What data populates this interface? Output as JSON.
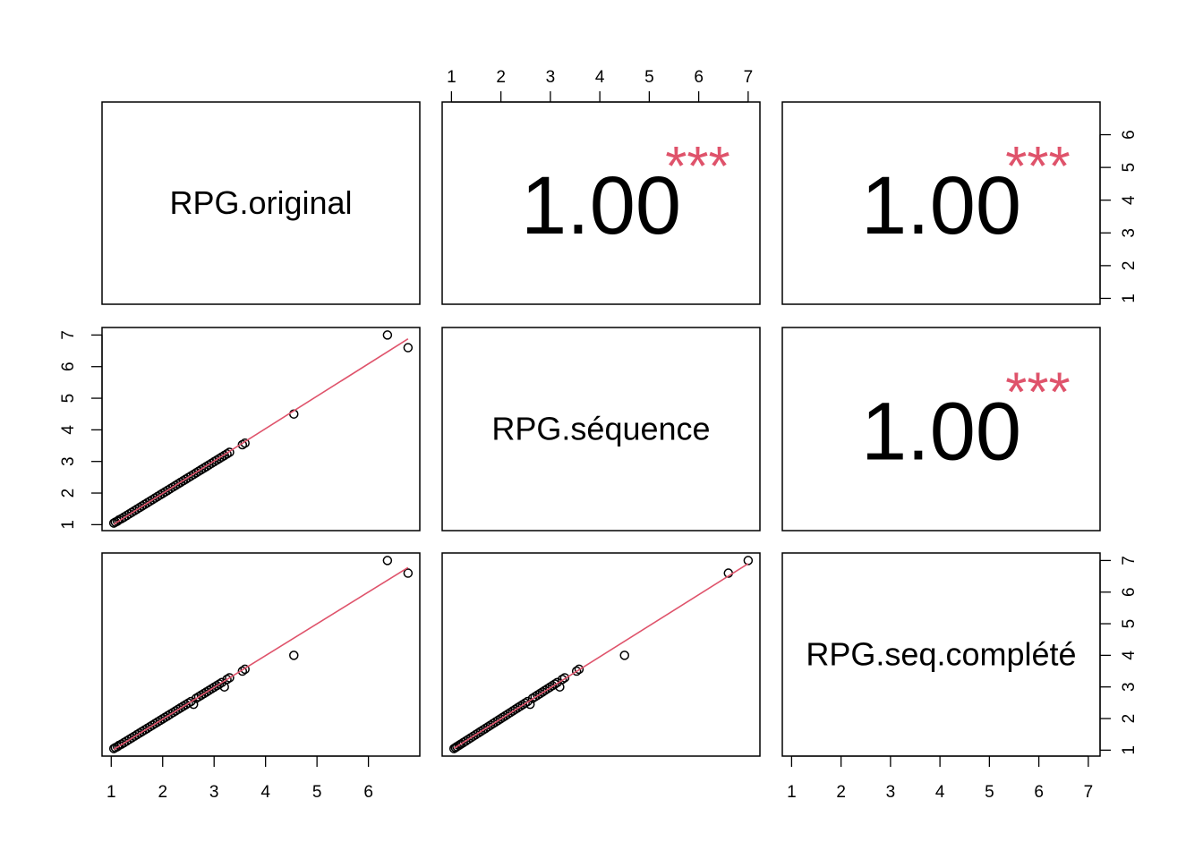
{
  "chart_data": {
    "type": "scatter-matrix",
    "variables": [
      "RPG.original",
      "RPG.séquence",
      "RPG.seq.complété"
    ],
    "observations": {
      "RPG.original": [
        1.05,
        1.08,
        1.12,
        1.15,
        1.2,
        1.25,
        1.3,
        1.35,
        1.4,
        1.45,
        1.5,
        1.55,
        1.6,
        1.65,
        1.7,
        1.75,
        1.8,
        1.85,
        1.9,
        1.95,
        2.0,
        2.05,
        2.1,
        2.15,
        2.2,
        2.25,
        2.3,
        2.35,
        2.4,
        2.45,
        2.5,
        2.55,
        2.6,
        2.65,
        2.7,
        2.75,
        2.8,
        2.85,
        2.9,
        2.95,
        3.0,
        3.05,
        3.1,
        3.15,
        3.2,
        3.25,
        3.3,
        3.55,
        3.6,
        4.55,
        6.37,
        6.77
      ],
      "RPG.séquence": [
        1.05,
        1.08,
        1.11,
        1.15,
        1.19,
        1.24,
        1.29,
        1.34,
        1.39,
        1.44,
        1.49,
        1.54,
        1.59,
        1.64,
        1.69,
        1.74,
        1.79,
        1.84,
        1.89,
        1.94,
        1.99,
        2.04,
        2.09,
        2.14,
        2.19,
        2.24,
        2.29,
        2.34,
        2.39,
        2.44,
        2.49,
        2.54,
        2.59,
        2.64,
        2.69,
        2.74,
        2.79,
        2.84,
        2.89,
        2.94,
        2.99,
        3.04,
        3.09,
        3.14,
        3.19,
        3.24,
        3.29,
        3.53,
        3.58,
        4.5,
        7.0,
        6.6
      ],
      "RPG.seq.complété": [
        1.05,
        1.08,
        1.11,
        1.15,
        1.19,
        1.24,
        1.29,
        1.34,
        1.39,
        1.44,
        1.49,
        1.54,
        1.59,
        1.64,
        1.69,
        1.74,
        1.79,
        1.84,
        1.89,
        1.94,
        1.99,
        2.04,
        2.09,
        2.14,
        2.19,
        2.24,
        2.29,
        2.34,
        2.39,
        2.44,
        2.49,
        2.54,
        2.45,
        2.64,
        2.69,
        2.74,
        2.79,
        2.84,
        2.89,
        2.94,
        2.99,
        3.04,
        3.09,
        3.14,
        3.0,
        3.24,
        3.29,
        3.5,
        3.56,
        4.0,
        7.0,
        6.6
      ]
    },
    "correlations": [
      {
        "row": 1,
        "col": 2,
        "value": "1.00",
        "stars": "***"
      },
      {
        "row": 1,
        "col": 3,
        "value": "1.00",
        "stars": "***"
      },
      {
        "row": 2,
        "col": 3,
        "value": "1.00",
        "stars": "***"
      }
    ],
    "axes": {
      "top_col2_ticks": [
        "1",
        "2",
        "3",
        "4",
        "5",
        "6",
        "7"
      ],
      "right_row1_ticks": [
        "1",
        "2",
        "3",
        "4",
        "5",
        "6"
      ],
      "left_row2_ticks": [
        "1",
        "2",
        "3",
        "4",
        "5",
        "6",
        "7"
      ],
      "right_row3_ticks": [
        "1",
        "2",
        "3",
        "4",
        "5",
        "6",
        "7"
      ],
      "bottom_col1_ticks": [
        "1",
        "2",
        "3",
        "4",
        "5",
        "6"
      ],
      "bottom_col3_ticks": [
        "1",
        "2",
        "3",
        "4",
        "5",
        "6",
        "7"
      ]
    },
    "colors": {
      "fit_line": "#DF536B",
      "stars": "#DF536B",
      "points": "#000000"
    },
    "point_style": "open-circle",
    "fit_line": "smoothed trend"
  }
}
